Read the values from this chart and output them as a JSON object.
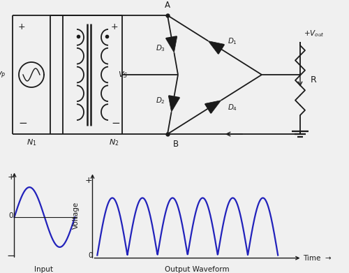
{
  "bg_color": "#f0f0f0",
  "line_color": "#1a1a1a",
  "wave_color": "#2222bb",
  "input_waveform_label": "Input\nWaveform",
  "output_waveform_label": "Output Waveform",
  "voltage_label": "Voltage",
  "time_label": "Time"
}
